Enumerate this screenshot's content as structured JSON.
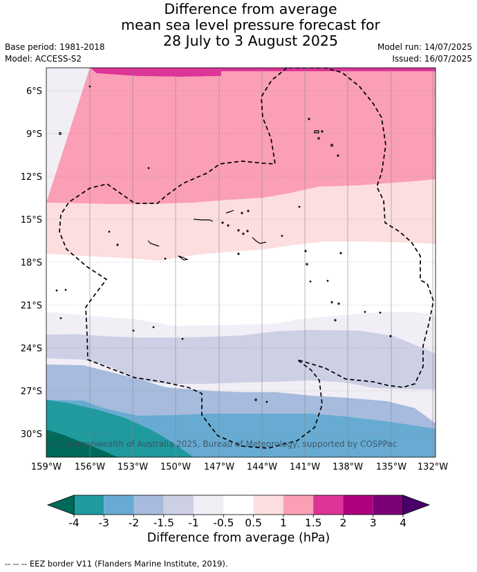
{
  "title": {
    "line1": "Difference from average",
    "line2": "mean sea level pressure forecast for",
    "line3": "28 July to 3 August 2025"
  },
  "meta": {
    "base_period": "Base period: 1981-2018",
    "model": "Model: ACCESS-S2",
    "model_run": "Model run: 14/07/2025",
    "issued": "Issued: 16/07/2025"
  },
  "map": {
    "lat_labels": [
      "6°S",
      "9°S",
      "12°S",
      "15°S",
      "18°S",
      "21°S",
      "24°S",
      "27°S",
      "30°S"
    ],
    "lon_labels": [
      "159°W",
      "156°W",
      "153°W",
      "150°W",
      "147°W",
      "144°W",
      "141°W",
      "138°W",
      "135°W",
      "132°W"
    ],
    "copyright": "© Commonwealth of Australia 2025, Bureau of Meteorology, supported by COSPPac"
  },
  "colorbar": {
    "ticks": [
      "-4",
      "-3",
      "-2",
      "-1.5",
      "-1",
      "-0.5",
      "0.5",
      "1",
      "1.5",
      "2",
      "3",
      "4"
    ],
    "colors": [
      "#006a5a",
      "#1f9a9e",
      "#67abd2",
      "#a6bbdd",
      "#cdd0e5",
      "#f1eef6",
      "#ffffff",
      "#fddedf",
      "#fa9fb5",
      "#dd3497",
      "#ae017e",
      "#7a0177",
      "#49006a"
    ],
    "title": "Difference from average (hPa)"
  },
  "footer": "--  --  -- EEZ border V11 (Flanders Marine Institute, 2019)."
}
